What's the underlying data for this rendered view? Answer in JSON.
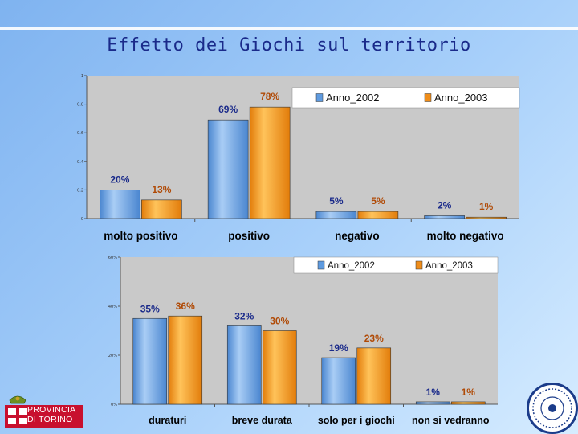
{
  "title": "Effetto dei Giochi sul territorio",
  "colors": {
    "series_2002": "#5f9be0",
    "series_2003": "#ef8d1a",
    "plot_bg": "#c9c9c9",
    "label_2002": "#1a2a8a",
    "label_2003": "#b04a06",
    "title": "#1a2a8a"
  },
  "logo": {
    "line1": "PROVINCIA",
    "line2": "DI TORINO",
    "icon": "provincia-crest-icon"
  },
  "seal": {
    "icon": "seal-icon"
  },
  "chart_data": [
    {
      "type": "bar",
      "categories": [
        "molto positivo",
        "positivo",
        "negativo",
        "molto negativo"
      ],
      "series": [
        {
          "name": "Anno_2002",
          "values": [
            20,
            69,
            5,
            2
          ],
          "labels": [
            "20%",
            "69%",
            "5%",
            "2%"
          ]
        },
        {
          "name": "Anno_2003",
          "values": [
            13,
            78,
            5,
            1
          ],
          "labels": [
            "13%",
            "78%",
            "5%",
            "1%"
          ]
        }
      ],
      "yticks": [
        "0",
        "0.2",
        "0.4",
        "0.6",
        "0.8",
        "1"
      ],
      "ylim": [
        0,
        100
      ],
      "legend": "top-right"
    },
    {
      "type": "bar",
      "categories": [
        "duraturi",
        "breve durata",
        "solo per i giochi",
        "non si vedranno"
      ],
      "series": [
        {
          "name": "Anno_2002",
          "values": [
            35,
            32,
            19,
            1
          ],
          "labels": [
            "35%",
            "32%",
            "19%",
            "1%"
          ]
        },
        {
          "name": "Anno_2003",
          "values": [
            36,
            30,
            23,
            1
          ],
          "labels": [
            "36%",
            "30%",
            "23%",
            "1%"
          ]
        }
      ],
      "yticks": [
        "0%",
        "20%",
        "40%",
        "60%"
      ],
      "ylim": [
        0,
        60
      ],
      "legend": "top-right"
    }
  ]
}
